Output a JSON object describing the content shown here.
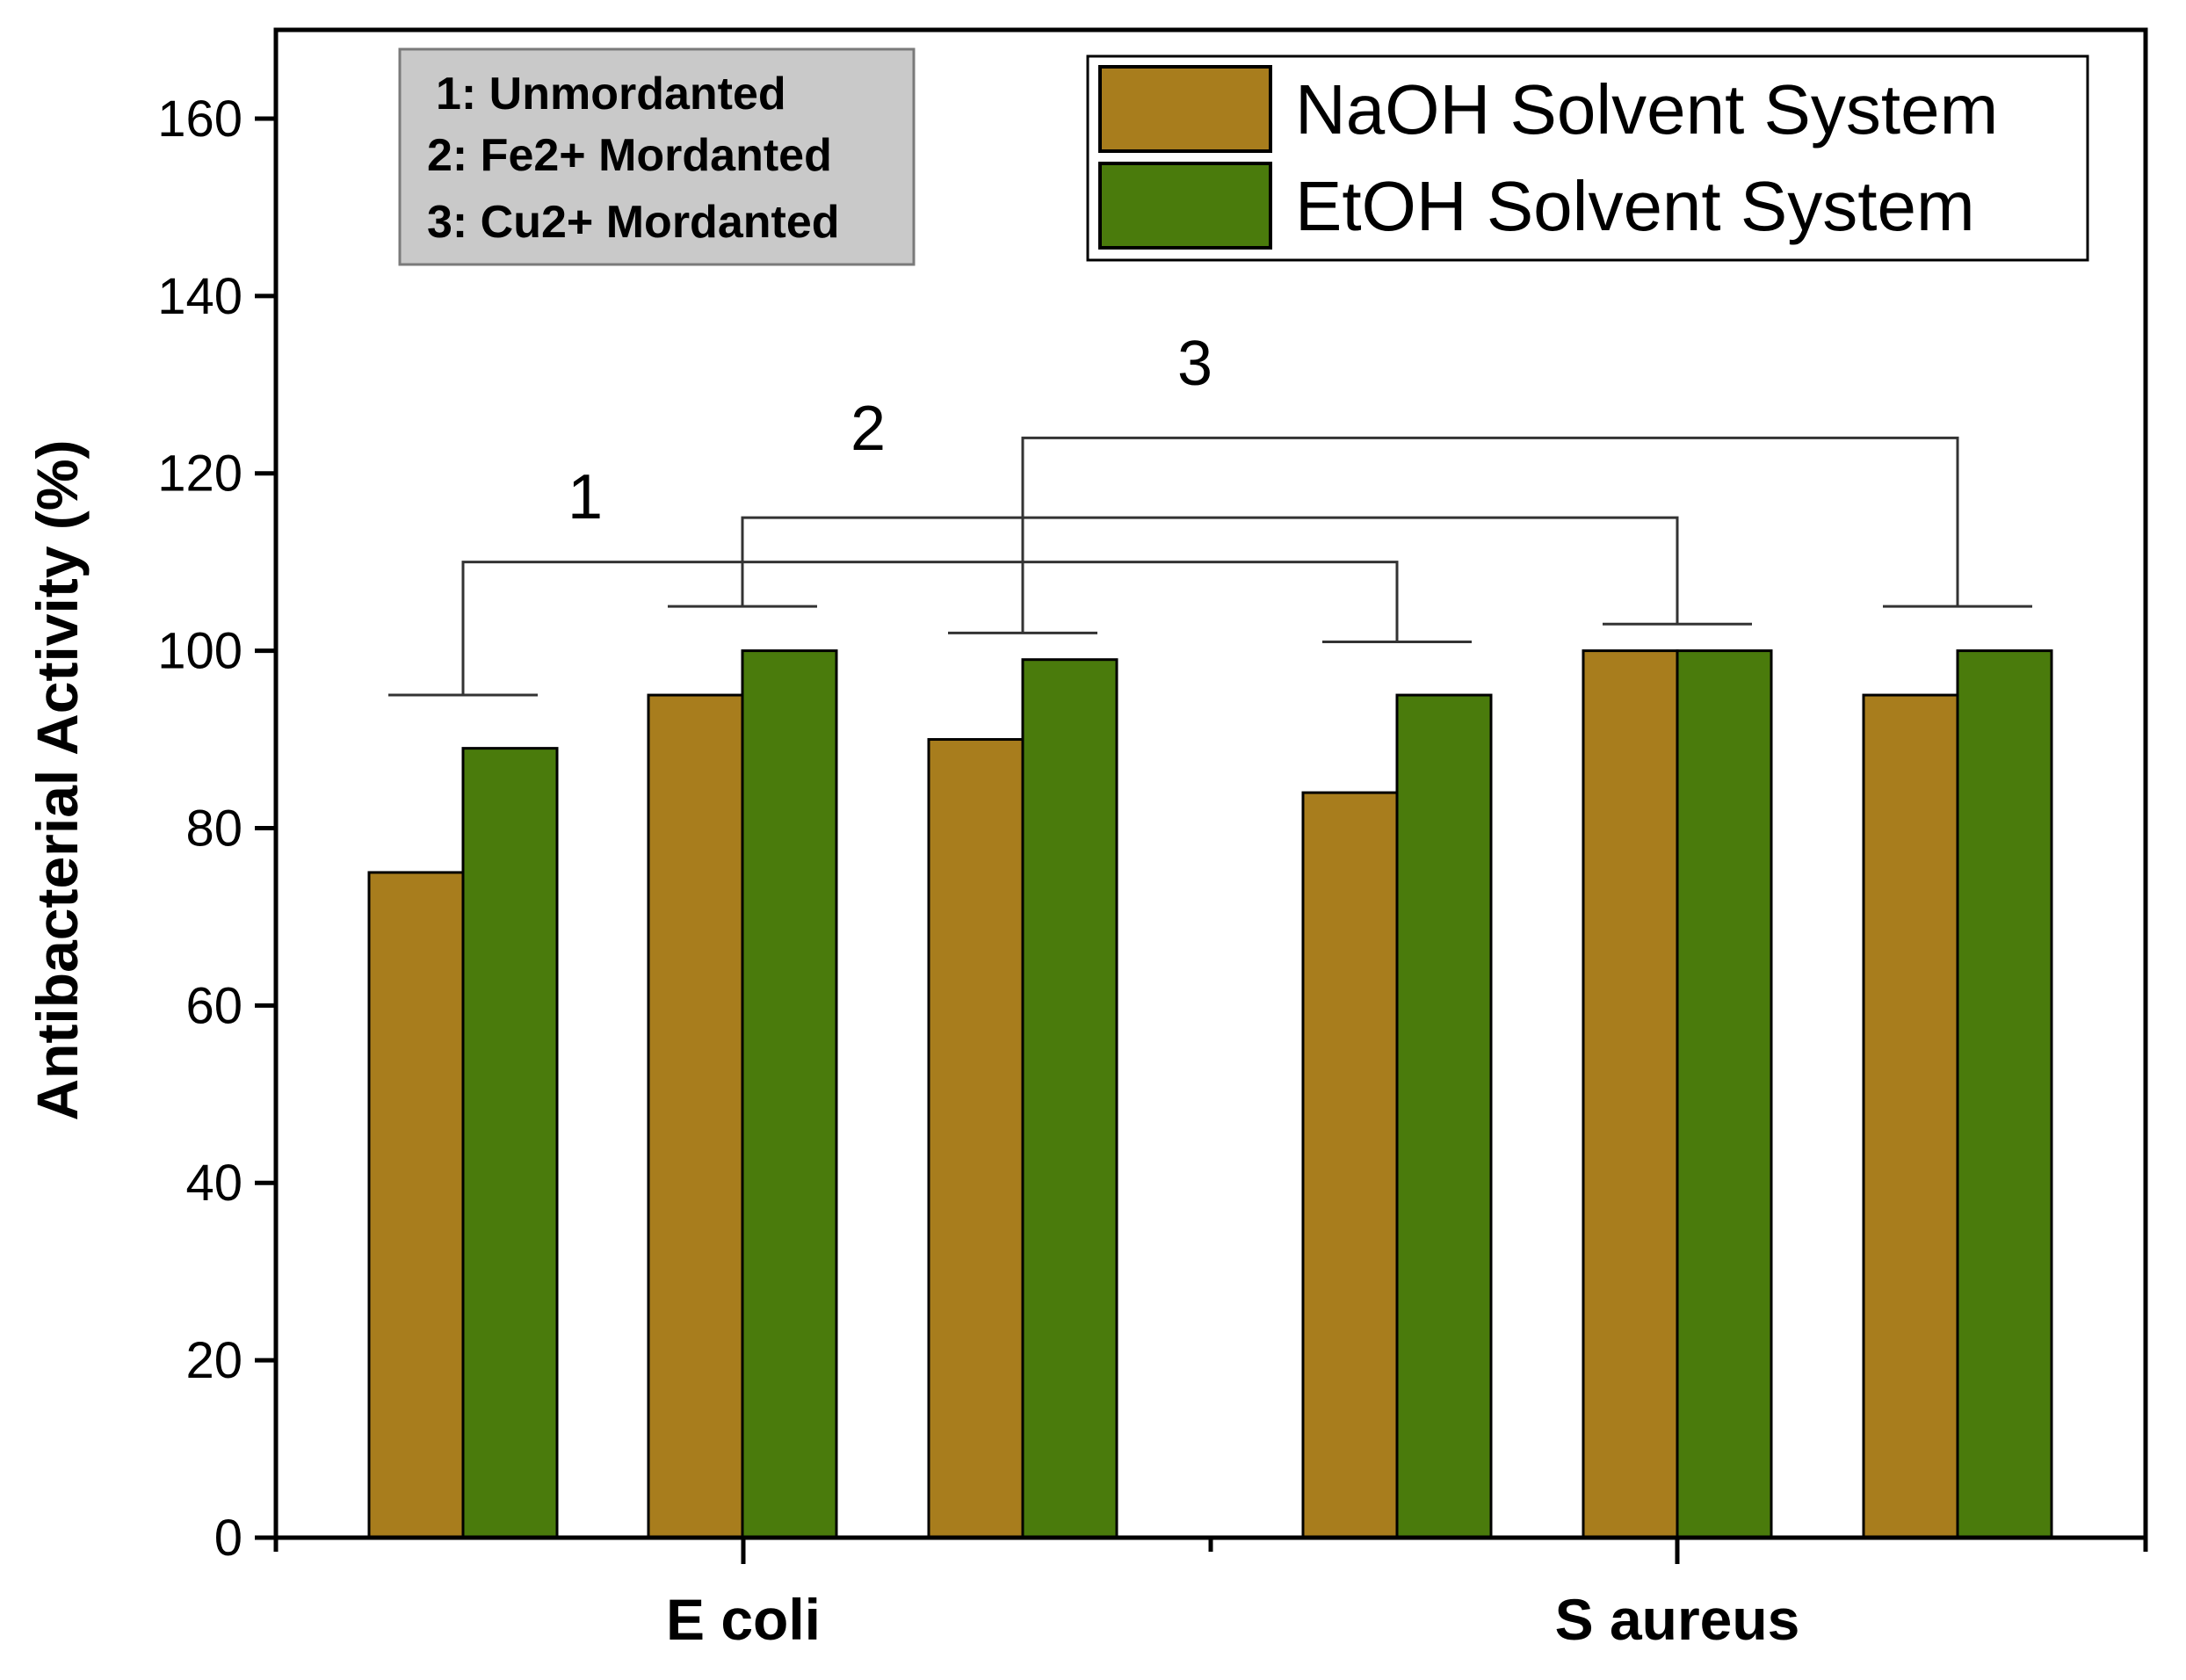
{
  "chart_data": {
    "type": "bar",
    "ylabel": "Antibacterial Activity (%)",
    "xlabel": "",
    "ylim": [
      0,
      170
    ],
    "yticks": [
      0,
      20,
      40,
      60,
      80,
      100,
      120,
      140,
      160
    ],
    "categories": [
      "E coli",
      "S aureus"
    ],
    "treatments": [
      "1",
      "2",
      "3"
    ],
    "series": [
      {
        "name": "NaOH Solvent System",
        "color": "#a87d1d",
        "values": [
          [
            75,
            95,
            90
          ],
          [
            84,
            100,
            95
          ]
        ]
      },
      {
        "name": "EtOH Solvent System",
        "color": "#4a7b0c",
        "values": [
          [
            89,
            100,
            99
          ],
          [
            95,
            100,
            100
          ]
        ]
      }
    ],
    "legend_position": "top-right",
    "notes": [
      "1: Unmordanted",
      "2: Fe2+ Mordanted",
      "3: Cu2+ Mordanted"
    ],
    "comparisons": [
      {
        "label": "1",
        "level": 110,
        "from_bar_top": [
          89,
          95
        ]
      },
      {
        "label": "2",
        "level": 115,
        "from_bar_top": [
          100,
          100
        ]
      },
      {
        "label": "3",
        "level": 124,
        "from_bar_top": [
          99,
          100
        ]
      }
    ]
  }
}
